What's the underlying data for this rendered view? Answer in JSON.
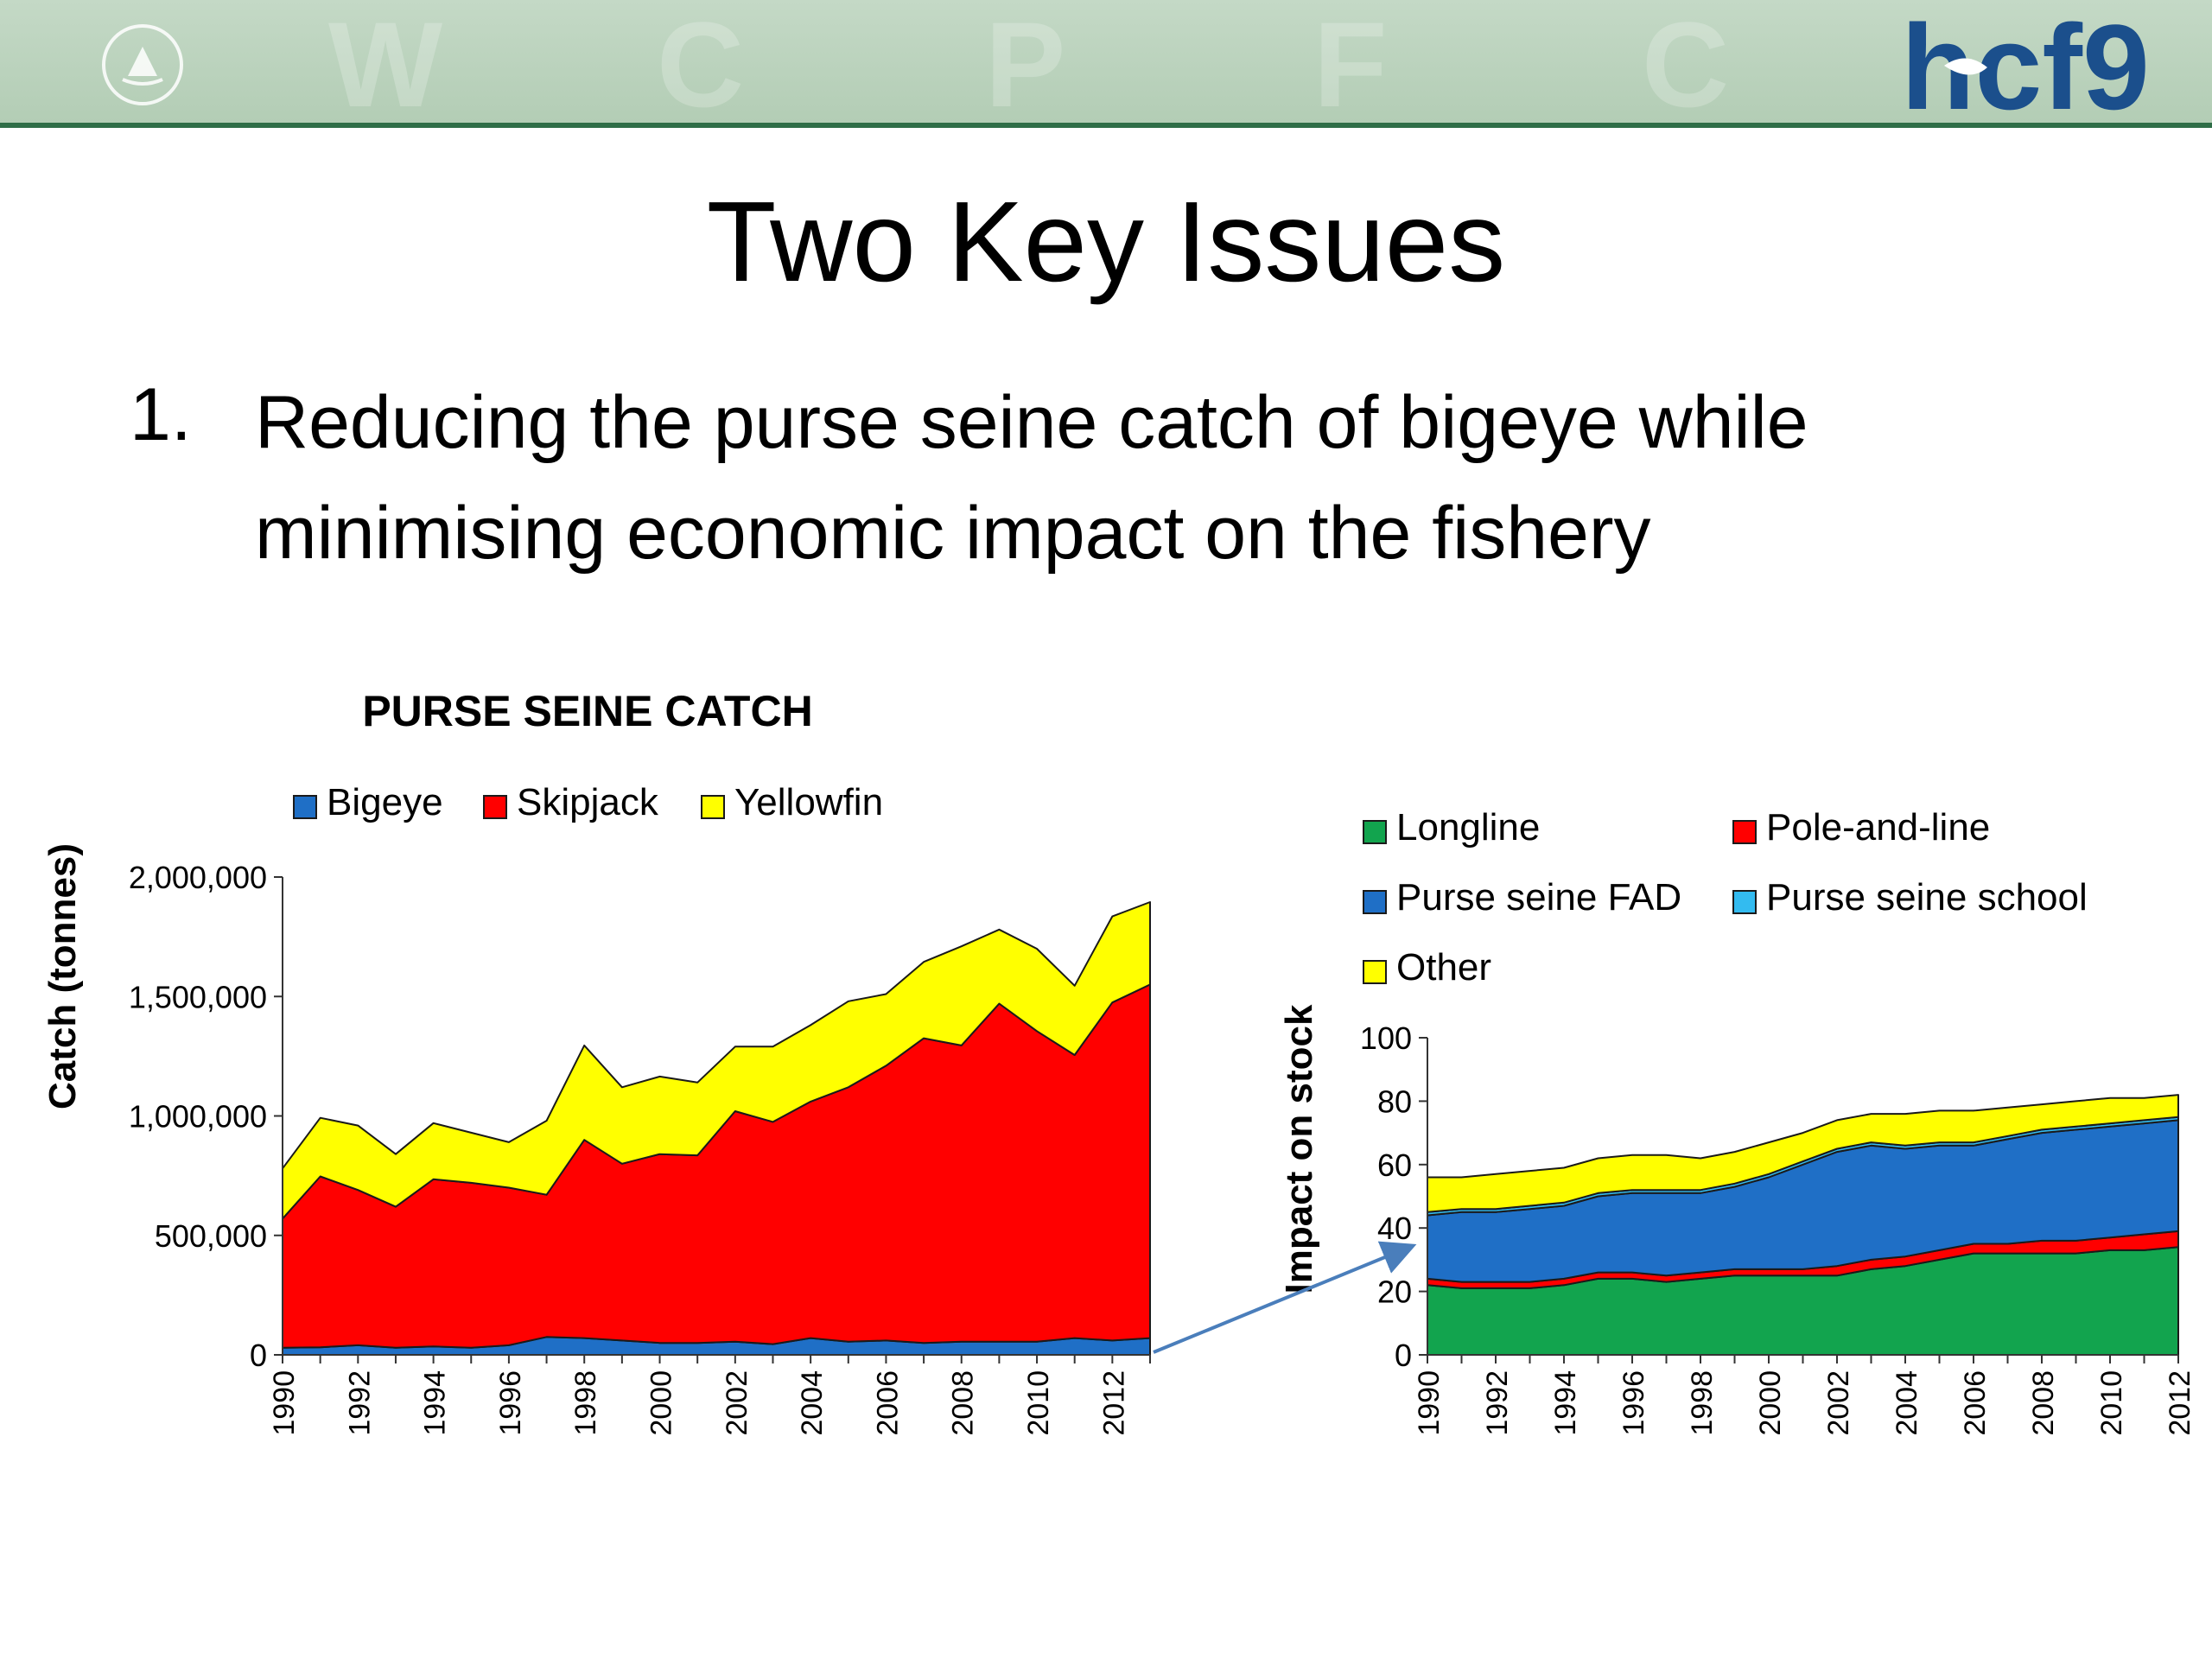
{
  "slide": {
    "title": "Two Key Issues",
    "bullet_number": "1.",
    "bullet_text": "Reducing the purse seine catch of bigeye while minimising economic impact on the fishery",
    "logo_text": "hcf9",
    "colors": {
      "banner": "#b9d3bb",
      "banner_line": "#2f6e47",
      "logo_blue": "#1b4f8c"
    }
  },
  "chart_data": [
    {
      "type": "area",
      "stacked": true,
      "title": "PURSE SEINE CATCH",
      "xlabel": "",
      "ylabel": "Catch (tonnes)",
      "ylim": [
        0,
        2000000
      ],
      "yticks": [
        "0",
        "500,000",
        "1,000,000",
        "1,500,000",
        "2,000,000"
      ],
      "xticks": [
        "1990",
        "1992",
        "1994",
        "1996",
        "1998",
        "2000",
        "2002",
        "2004",
        "2006",
        "2008",
        "2010",
        "2012"
      ],
      "legend_position": "top",
      "x": [
        1990,
        1991,
        1992,
        1993,
        1994,
        1995,
        1996,
        1997,
        1998,
        1999,
        2000,
        2001,
        2002,
        2003,
        2004,
        2005,
        2006,
        2007,
        2008,
        2009,
        2010,
        2011,
        2012,
        2013
      ],
      "series": [
        {
          "name": "Bigeye",
          "color": "#1f6fc6",
          "values": [
            30000,
            32000,
            40000,
            30000,
            35000,
            30000,
            40000,
            75000,
            70000,
            60000,
            50000,
            50000,
            55000,
            45000,
            70000,
            55000,
            60000,
            50000,
            55000,
            55000,
            55000,
            70000,
            60000,
            70000
          ]
        },
        {
          "name": "Skipjack",
          "color": "#ff0000",
          "values": [
            540000,
            715000,
            650000,
            590000,
            700000,
            690000,
            660000,
            595000,
            830000,
            740000,
            790000,
            785000,
            965000,
            930000,
            990000,
            1065000,
            1150000,
            1275000,
            1240000,
            1415000,
            1300000,
            1185000,
            1415000,
            1480000
          ]
        },
        {
          "name": "Yellowfin",
          "color": "#ffff00",
          "values": [
            210000,
            245000,
            270000,
            220000,
            235000,
            210000,
            190000,
            310000,
            395000,
            320000,
            325000,
            305000,
            270000,
            315000,
            320000,
            360000,
            300000,
            320000,
            415000,
            310000,
            345000,
            290000,
            360000,
            345000
          ]
        }
      ]
    },
    {
      "type": "area",
      "stacked": true,
      "title": "",
      "xlabel": "",
      "ylabel": "Impact on stock",
      "ylim": [
        0,
        100
      ],
      "yticks": [
        "0",
        "20",
        "40",
        "60",
        "80",
        "100"
      ],
      "xticks": [
        "1990",
        "1992",
        "1994",
        "1996",
        "1998",
        "2000",
        "2002",
        "2004",
        "2006",
        "2008",
        "2010",
        "2012"
      ],
      "legend_position": "top",
      "x": [
        1990,
        1991,
        1992,
        1993,
        1994,
        1995,
        1996,
        1997,
        1998,
        1999,
        2000,
        2001,
        2002,
        2003,
        2004,
        2005,
        2006,
        2007,
        2008,
        2009,
        2010,
        2011,
        2012
      ],
      "series": [
        {
          "name": "Longline",
          "color": "#12a44e",
          "values": [
            22,
            21,
            21,
            21,
            22,
            24,
            24,
            23,
            24,
            25,
            25,
            25,
            25,
            27,
            28,
            30,
            32,
            32,
            32,
            32,
            33,
            33,
            34
          ]
        },
        {
          "name": "Pole-and-line",
          "color": "#ff0000",
          "values": [
            2,
            2,
            2,
            2,
            2,
            2,
            2,
            2,
            2,
            2,
            2,
            2,
            3,
            3,
            3,
            3,
            3,
            3,
            4,
            4,
            4,
            5,
            5
          ]
        },
        {
          "name": "Purse seine FAD",
          "color": "#1f6fc6",
          "values": [
            20,
            22,
            22,
            23,
            23,
            24,
            25,
            26,
            25,
            26,
            29,
            33,
            36,
            36,
            34,
            33,
            31,
            33,
            34,
            35,
            35,
            35,
            35
          ]
        },
        {
          "name": "Purse seine school",
          "color": "#33bbf0",
          "values": [
            1,
            1,
            1,
            1,
            1,
            1,
            1,
            1,
            1,
            1,
            1,
            1,
            1,
            1,
            1,
            1,
            1,
            1,
            1,
            1,
            1,
            1,
            1
          ]
        },
        {
          "name": "Other",
          "color": "#ffff00",
          "values": [
            11,
            10,
            11,
            11,
            11,
            11,
            11,
            11,
            10,
            10,
            10,
            9,
            9,
            9,
            10,
            10,
            10,
            9,
            8,
            8,
            8,
            7,
            7
          ]
        }
      ]
    }
  ]
}
